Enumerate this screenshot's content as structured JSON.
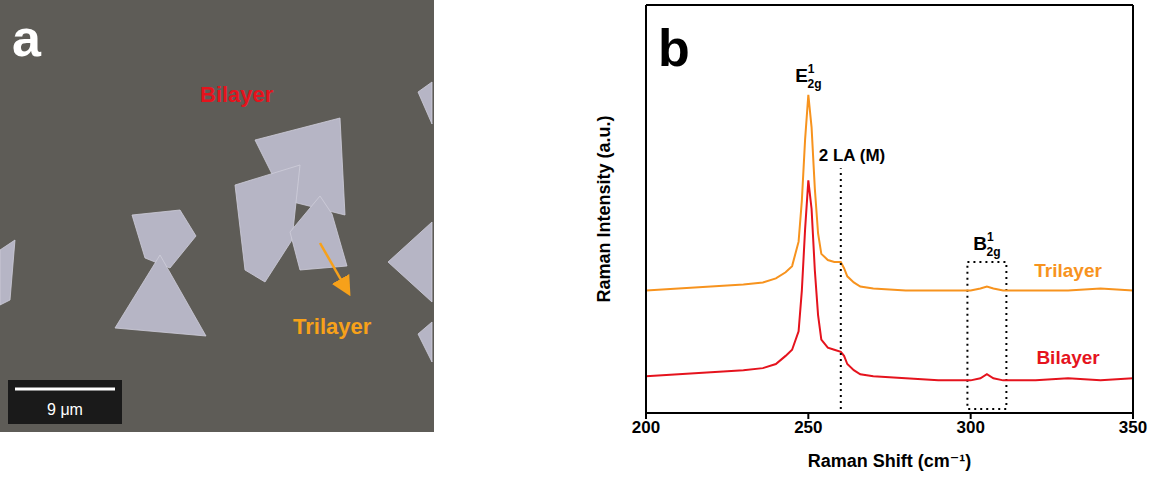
{
  "image_panel": {
    "letter": "a",
    "labels": [
      {
        "text": "Bilayer",
        "color": "#e5131d"
      },
      {
        "text": "Trilayer",
        "color": "#f7a11a"
      }
    ],
    "scale_bar": "9 μm"
  },
  "chart_data": {
    "type": "line",
    "panel_letter": "b",
    "x_label": "Raman Shift (cm⁻¹)",
    "y_label": "Raman Intensity (a.u.)",
    "x": [
      200,
      210,
      220,
      230,
      236,
      240,
      243,
      245,
      247,
      248,
      249,
      250,
      251,
      252,
      253,
      254,
      256,
      258,
      260,
      261,
      262,
      264,
      266,
      270,
      280,
      290,
      300,
      303,
      305,
      307,
      310,
      320,
      330,
      340,
      350
    ],
    "series": [
      {
        "name": "Trilayer",
        "color": "#f7931e",
        "values": [
          30,
          30.5,
          31,
          31.5,
          32,
          33,
          34.5,
          36,
          42,
          52,
          67,
          78,
          70,
          55,
          44,
          39,
          37.5,
          37,
          37,
          35.5,
          33.5,
          32,
          31,
          30.5,
          30,
          30,
          30,
          30.5,
          31,
          30.5,
          30,
          30,
          30,
          30.5,
          30
        ]
      },
      {
        "name": "Bilayer",
        "color": "#e5131d",
        "values": [
          9,
          9.5,
          10,
          10.5,
          11,
          12,
          14,
          15.5,
          20,
          30,
          45,
          57,
          50,
          35,
          24,
          18,
          16,
          15.5,
          15,
          14,
          12,
          10.5,
          9.5,
          9,
          8.5,
          8,
          8,
          8.5,
          9.5,
          8.5,
          8,
          8,
          8.5,
          8,
          8.5
        ]
      }
    ],
    "xlim": [
      200,
      350
    ],
    "xticks": [
      200,
      250,
      300,
      350
    ],
    "ylim": [
      0,
      100
    ],
    "tick_labels": "x",
    "grid": false,
    "annotations": [
      {
        "text": "E",
        "superscript": "1",
        "subscript": "2g",
        "x": 250
      },
      {
        "text": "2 LA (M)",
        "x": 260,
        "y_range": [
          1,
          60
        ]
      },
      {
        "text": "B",
        "superscript": "1",
        "subscript": "2g",
        "x_range": [
          299,
          311
        ],
        "y_range": [
          1,
          37
        ]
      }
    ]
  }
}
